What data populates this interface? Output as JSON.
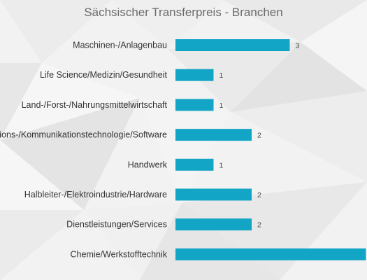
{
  "chart_data": {
    "type": "bar",
    "orientation": "horizontal",
    "title": "Sächsischer Transferpreis - Branchen",
    "categories": [
      "Maschinen-/Anlagenbau",
      "Life Science/Medizin/Gesundheit",
      "Land-/Forst-/Nahrungsmittelwirtschaft",
      "Informations-/Kommunikationstechnologie/Software",
      "Handwerk",
      "Halbleiter-/Elektroindustrie/Hardware",
      "Dienstleistungen/Services",
      "Chemie/Werkstofftechnik"
    ],
    "values": [
      3,
      1,
      1,
      2,
      1,
      2,
      2,
      5
    ],
    "value_labels": [
      "3",
      "1",
      "1",
      "2",
      "1",
      "2",
      "2",
      ""
    ],
    "xlim": [
      0,
      5
    ],
    "bar_color": "#12a5c6",
    "grid": false,
    "legend": "none"
  }
}
